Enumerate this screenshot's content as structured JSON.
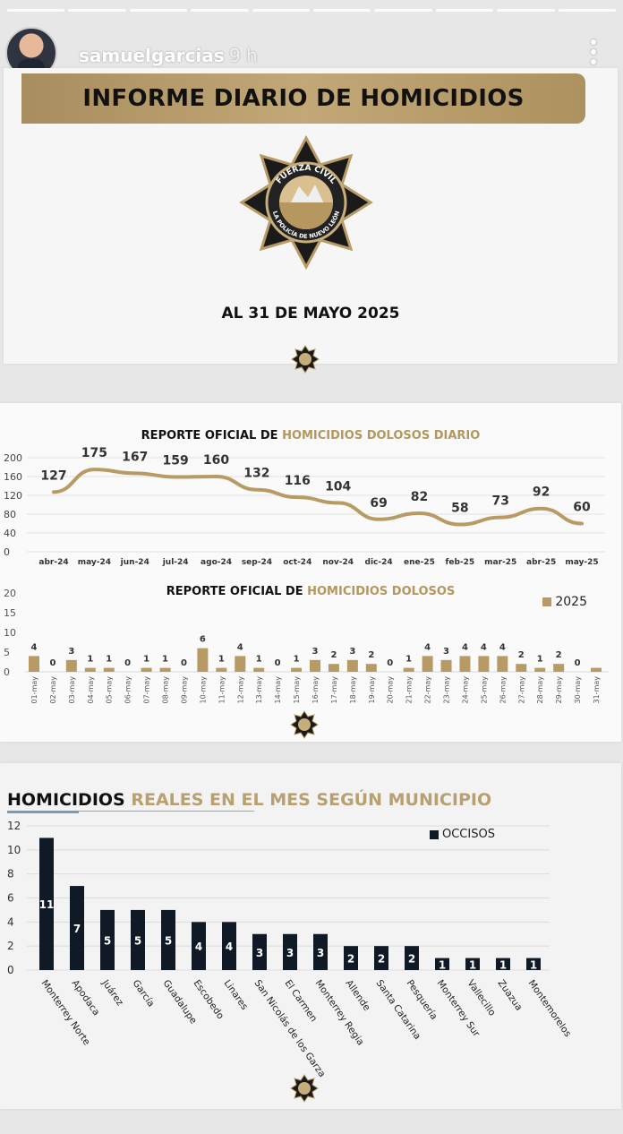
{
  "story": {
    "username": "samuelgarcias",
    "time": "9 h",
    "segments": 10
  },
  "slide1": {
    "banner_title": "INFORME DIARIO DE HOMICIDIOS",
    "badge_text_top": "FUERZA CIVIL",
    "badge_text_bottom": "LA POLICÍA DE NUEVO LEÓN",
    "date_label": "AL 31 DE MAYO 2025",
    "accent_color": "#b89b64"
  },
  "slide2": {
    "title_black": "REPORTE OFICIAL DE ",
    "title_gold": "HOMICIDIOS DOLOSOS DIARIO",
    "title2_black": "REPORTE OFICIAL DE ",
    "title2_gold": "HOMICIDIOS DOLOSOS",
    "legend_2025": "2025"
  },
  "slide3": {
    "title_black": "HOMICIDIOS ",
    "title_gold": "REALES EN EL MES SEGÚN MUNICIPIO",
    "legend": "OCCISOS"
  },
  "chart_data": [
    {
      "type": "line",
      "title": "REPORTE OFICIAL DE HOMICIDIOS DOLOSOS DIARIO",
      "categories": [
        "abr-24",
        "may-24",
        "jun-24",
        "jul-24",
        "ago-24",
        "sep-24",
        "oct-24",
        "nov-24",
        "dic-24",
        "ene-25",
        "feb-25",
        "mar-25",
        "abr-25",
        "may-25"
      ],
      "values": [
        127,
        175,
        167,
        159,
        160,
        132,
        116,
        104,
        69,
        82,
        58,
        73,
        92,
        60
      ],
      "ylim": [
        0,
        200
      ],
      "yticks": [
        0,
        40,
        80,
        120,
        160,
        200
      ],
      "color": "#b89b64",
      "grid": true
    },
    {
      "type": "bar",
      "title": "REPORTE OFICIAL DE HOMICIDIOS DOLOSOS",
      "series_name": "2025",
      "categories": [
        "01-may",
        "02-may",
        "03-may",
        "04-may",
        "05-may",
        "06-may",
        "07-may",
        "08-may",
        "09-may",
        "10-may",
        "11-may",
        "12-may",
        "13-may",
        "14-may",
        "15-may",
        "16-may",
        "17-may",
        "18-may",
        "19-may",
        "20-may",
        "21-may",
        "22-may",
        "23-may",
        "24-may",
        "25-may",
        "26-may",
        "27-may",
        "28-may",
        "29-may",
        "30-may",
        "31-may"
      ],
      "values": [
        4,
        0,
        3,
        1,
        1,
        0,
        1,
        1,
        0,
        6,
        1,
        4,
        1,
        0,
        1,
        3,
        2,
        3,
        2,
        0,
        1,
        4,
        3,
        4,
        4,
        4,
        2,
        1,
        2,
        0,
        1
      ],
      "labels": [
        "4",
        "0",
        "3",
        "1",
        "1",
        "0",
        "1",
        "1",
        "0",
        "6",
        "1",
        "4",
        "1",
        "0",
        "1",
        "3",
        "2",
        "3",
        "2",
        "0",
        "1",
        "4",
        "3",
        "4",
        "4",
        "4",
        "2",
        "1",
        "2",
        "0",
        ""
      ],
      "ylim": [
        0,
        20
      ],
      "yticks": [
        0,
        5,
        10,
        15,
        20
      ],
      "color": "#b89b64",
      "legend": "right"
    },
    {
      "type": "bar",
      "title": "HOMICIDIOS REALES EN EL MES SEGÚN MUNICIPIO",
      "series_name": "OCCISOS",
      "categories": [
        "Monterrey Norte",
        "Apodaca",
        "Juárez",
        "García",
        "Guadalupe",
        "Escobedo",
        "Linares",
        "San Nicolás de los Garza",
        "El Carmen",
        "Monterrey Regia",
        "Allende",
        "Santa Catarina",
        "Pesquería",
        "Monterrey Sur",
        "Vallecillo",
        "Zuazua",
        "Montemorelos"
      ],
      "values": [
        11,
        7,
        5,
        5,
        5,
        4,
        4,
        3,
        3,
        3,
        2,
        2,
        2,
        1,
        1,
        1,
        1
      ],
      "ylim": [
        0,
        12
      ],
      "yticks": [
        0,
        2,
        4,
        6,
        8,
        10,
        12
      ],
      "color": "#101a26",
      "grid": true,
      "legend": "top-right"
    }
  ]
}
